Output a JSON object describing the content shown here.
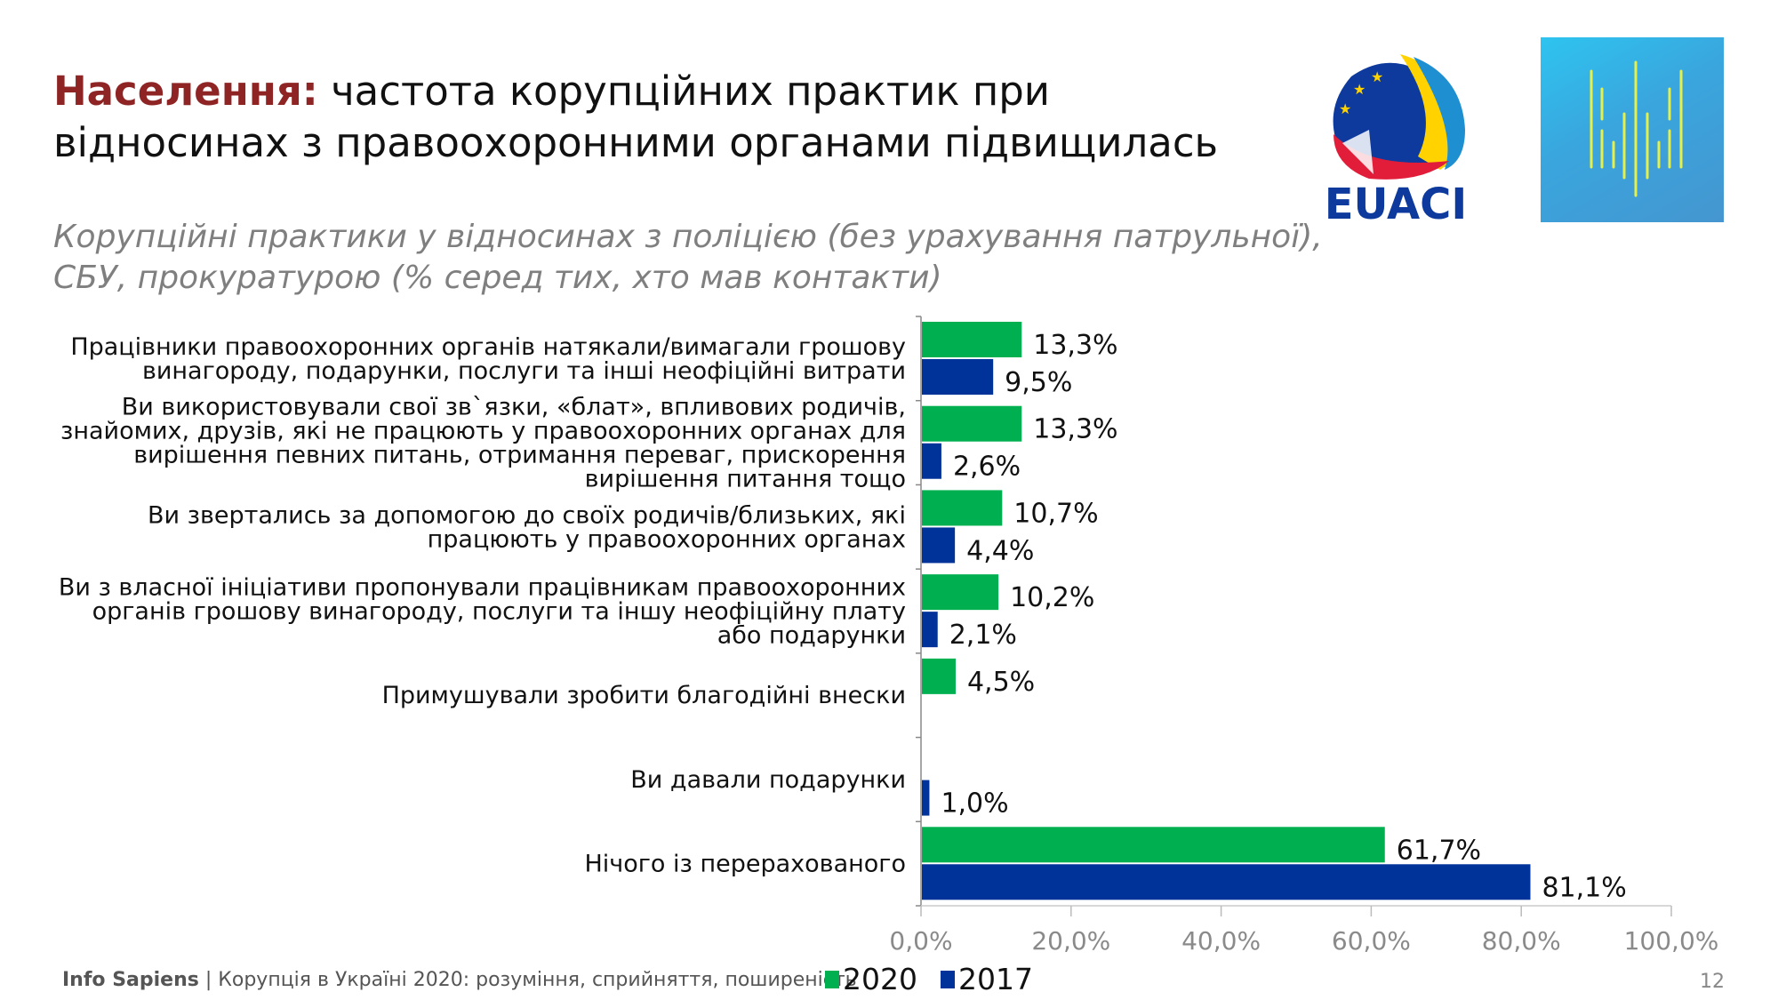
{
  "header": {
    "title_highlight": "Населення:",
    "title_line1": " частота корупційних практик при",
    "title_line2": "відносинах з правоохоронними органами підвищилась",
    "subtitle_line1": "Корупційні практики у відносинах з поліцією (без урахування патрульної),",
    "subtitle_line2": "СБУ, прокуратурою (% серед тих, хто мав контакти)"
  },
  "logos": {
    "euaci": "EUACI"
  },
  "colors": {
    "2020": "#00b050",
    "2017": "#003399",
    "title_accent": "#8e2424"
  },
  "chart_data": {
    "type": "bar",
    "orientation": "horizontal",
    "categories": [
      [
        "Працівники правоохоронних органів натякали/вимагали грошову",
        "винагороду, подарунки, послуги та інші неофіційні витрати"
      ],
      [
        "Ви використовували свої зв`язки, «блат», впливових родичів,",
        "знайомих, друзів, які не працюють у правоохоронних органах для",
        "вирішення певних питань, отримання переваг, прискорення",
        "вирішення питання тощо"
      ],
      [
        "Ви звертались за допомогою до своїх родичів/близьких, які",
        "працюють у правоохоронних органах"
      ],
      [
        "Ви з власної ініціативи пропонували працівникам правоохоронних",
        "органів грошову винагороду, послуги та іншу неофіційну плату",
        "або подарунки"
      ],
      [
        "Примушували зробити благодійні внески"
      ],
      [
        "Ви давали подарунки"
      ],
      [
        "Нічого із перерахованого"
      ]
    ],
    "series": [
      {
        "name": "2020",
        "values": [
          13.3,
          13.3,
          10.7,
          10.2,
          4.5,
          null,
          61.7
        ],
        "labels": [
          "13,3%",
          "13,3%",
          "10,7%",
          "10,2%",
          "4,5%",
          null,
          "61,7%"
        ]
      },
      {
        "name": "2017",
        "values": [
          9.5,
          2.6,
          4.4,
          2.1,
          null,
          1.0,
          81.1
        ],
        "labels": [
          "9,5%",
          "2,6%",
          "4,4%",
          "2,1%",
          null,
          "1,0%",
          "81,1%"
        ]
      }
    ],
    "xlim": [
      0,
      100
    ],
    "xticks": [
      "0,0%",
      "20,0%",
      "40,0%",
      "60,0%",
      "80,0%",
      "100,0%"
    ],
    "legend": "bottom",
    "grid": false
  },
  "footer": {
    "org": "Info Sapiens",
    "text": " | Корупція в Україні 2020: розуміння, сприйняття, поширеність",
    "page": "12"
  }
}
